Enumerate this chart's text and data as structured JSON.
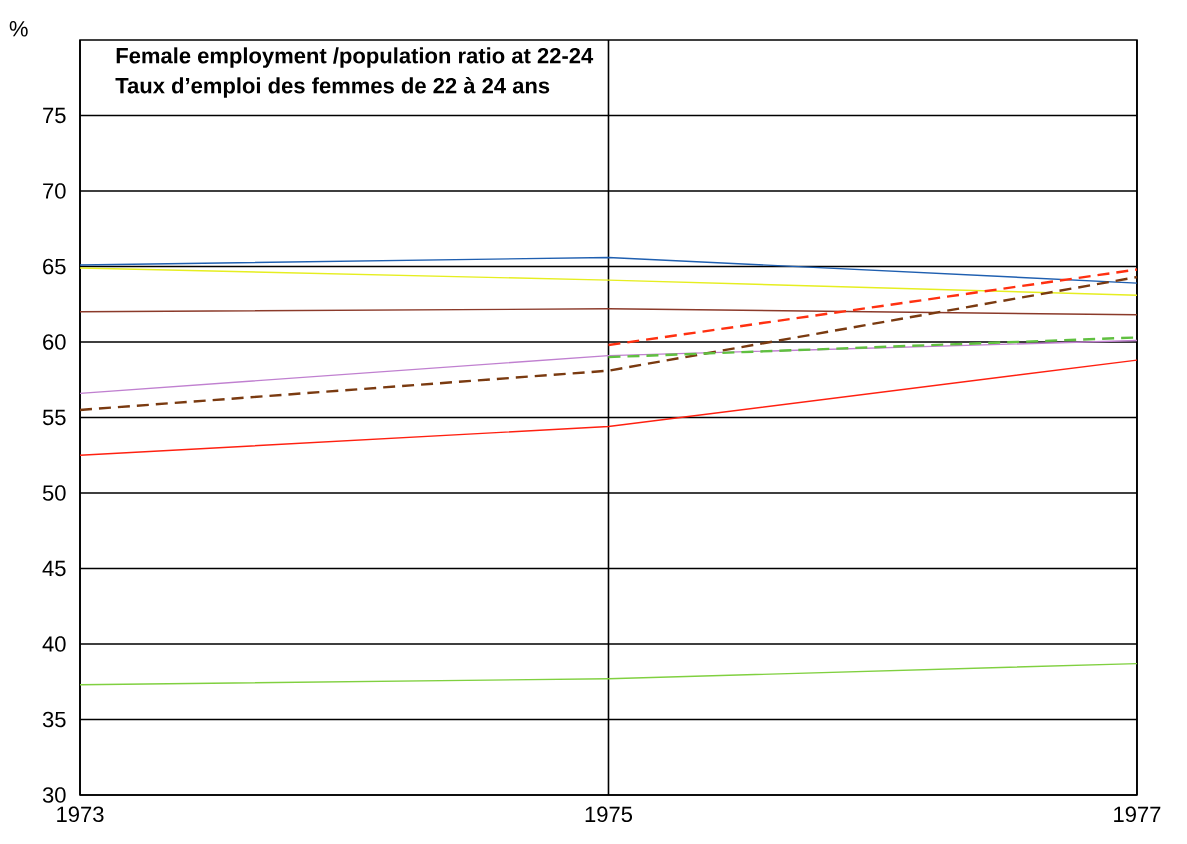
{
  "chart_data": {
    "type": "line",
    "title": "Female employment /population ratio at 22-24",
    "subtitle": "Taux d’emploi des femmes de 22 à 24 ans",
    "ylabel": "%",
    "x": [
      1973,
      1975,
      1977
    ],
    "xlim": [
      1973,
      1977
    ],
    "xticks": [
      1973,
      1975,
      1977
    ],
    "ylim": [
      30,
      80
    ],
    "yticks": [
      30,
      35,
      40,
      45,
      50,
      55,
      60,
      65,
      70,
      75
    ],
    "grid": true,
    "marker": "none",
    "series": [
      {
        "color": "#1f5fb0",
        "values": [
          65.1,
          65.6,
          63.9
        ],
        "line_style": "solid"
      },
      {
        "color": "#e6ee20",
        "values": [
          64.9,
          64.1,
          63.1
        ],
        "line_style": "solid"
      },
      {
        "color": "#8b3a2a",
        "values": [
          62.0,
          62.2,
          61.8
        ],
        "line_style": "solid"
      },
      {
        "color": "#c080d0",
        "values": [
          56.6,
          59.1,
          60.1
        ],
        "line_style": "solid"
      },
      {
        "color": "#7a3a10",
        "values": [
          55.5,
          58.1,
          64.3
        ],
        "line_style": "dashed"
      },
      {
        "color": "#ff3010",
        "values": [
          null,
          59.8,
          64.8
        ],
        "line_style": "dashed"
      },
      {
        "color": "#60c040",
        "values": [
          null,
          59.0,
          60.3
        ],
        "line_style": "dashed"
      },
      {
        "color": "#ff2010",
        "values": [
          52.5,
          54.4,
          58.8
        ],
        "line_style": "solid"
      },
      {
        "color": "#80d040",
        "values": [
          37.3,
          37.7,
          38.7
        ],
        "line_style": "solid"
      }
    ]
  }
}
